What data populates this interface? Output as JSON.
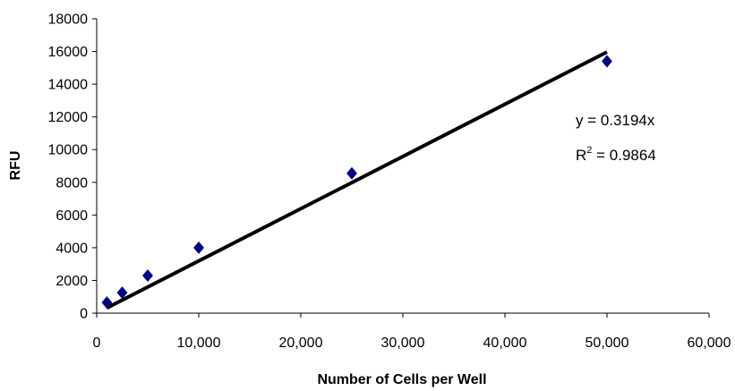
{
  "chart_data": {
    "type": "scatter",
    "title": "",
    "xlabel": "Number of Cells per Well",
    "ylabel": "RFU",
    "xlim": [
      0,
      60000
    ],
    "ylim": [
      0,
      18000
    ],
    "x_ticks": [
      0,
      10000,
      20000,
      30000,
      40000,
      50000,
      60000
    ],
    "x_tick_labels": [
      "0",
      "10,000",
      "20,000",
      "30,000",
      "40,000",
      "50,000",
      "60,000"
    ],
    "y_ticks": [
      0,
      2000,
      4000,
      6000,
      8000,
      10000,
      12000,
      14000,
      16000,
      18000
    ],
    "y_tick_labels": [
      "0",
      "2000",
      "4000",
      "6000",
      "8000",
      "10000",
      "12000",
      "14000",
      "16000",
      "18000"
    ],
    "grid": false,
    "legend": "none",
    "series": [
      {
        "marker": "diamond",
        "color": "#000080",
        "x": [
          1000,
          2500,
          5000,
          10000,
          25000,
          50000
        ],
        "y": [
          650,
          1250,
          2300,
          4000,
          8550,
          15400
        ]
      }
    ],
    "trendline": {
      "type": "linear",
      "slope": 0.3194,
      "intercept": 0,
      "x_range": [
        1000,
        50000
      ],
      "color": "#000000"
    },
    "annotations": {
      "equation": "y = 0.3194x",
      "r2_prefix": "R",
      "r2_sup": "2",
      "r2_value": " = 0.9864"
    }
  }
}
